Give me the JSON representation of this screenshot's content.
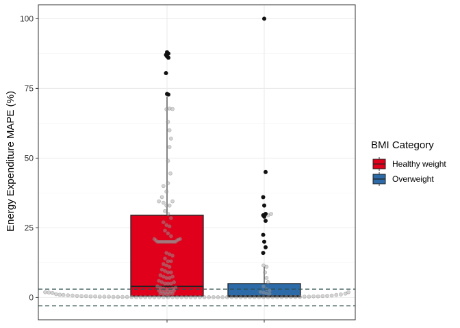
{
  "chart_data": {
    "type": "boxplot",
    "title": "",
    "xlabel": "",
    "ylabel": "Energy Expenditure MAPE (%)",
    "ylim": [
      -8,
      105
    ],
    "y_ticks": [
      0,
      25,
      50,
      75,
      100
    ],
    "y_tick_labels": [
      "0",
      "25",
      "50",
      "75",
      "100"
    ],
    "grid": true,
    "legend_position": "right",
    "legend_title": "BMI Category",
    "reference_lines": [
      3,
      -3
    ],
    "categories": [
      "Healthy weight",
      "Overweight"
    ],
    "series": [
      {
        "name": "Healthy weight",
        "color": "#e0001b",
        "q1": 0.5,
        "median": 4,
        "q3": 29.5,
        "whisker_low": 0,
        "whisker_high": 72,
        "outliers": [
          88,
          87.5,
          87,
          86.5,
          86,
          80.5,
          73,
          72.8
        ]
      },
      {
        "name": "Overweight",
        "color": "#2c6aa8",
        "q1": 0.2,
        "median": 0.5,
        "q3": 5,
        "whisker_low": 0,
        "whisker_high": 11,
        "outliers": [
          100,
          45,
          36,
          33,
          30,
          29.5,
          29,
          27.5,
          22.5,
          20,
          18,
          16
        ]
      }
    ],
    "jitter_points": [
      {
        "x": 0.0,
        "y": 1.9
      },
      {
        "x": 0.012,
        "y": 1.8
      },
      {
        "x": 0.024,
        "y": 1.6
      },
      {
        "x": 0.036,
        "y": 1.2
      },
      {
        "x": 0.048,
        "y": 1.0
      },
      {
        "x": 0.06,
        "y": 0.9
      },
      {
        "x": 0.075,
        "y": 0.8
      },
      {
        "x": 0.09,
        "y": 0.7
      },
      {
        "x": 0.105,
        "y": 0.6
      },
      {
        "x": 0.12,
        "y": 0.5
      },
      {
        "x": 0.135,
        "y": 0.5
      },
      {
        "x": 0.15,
        "y": 0.4
      },
      {
        "x": 0.165,
        "y": 0.4
      },
      {
        "x": 0.18,
        "y": 0.3
      },
      {
        "x": 0.195,
        "y": 0.3
      },
      {
        "x": 0.21,
        "y": 0.3
      },
      {
        "x": 0.225,
        "y": 0.2
      },
      {
        "x": 0.24,
        "y": 0.2
      },
      {
        "x": 0.255,
        "y": 0.2
      },
      {
        "x": 0.27,
        "y": 0.2
      },
      {
        "x": 0.285,
        "y": 0.2
      },
      {
        "x": 0.3,
        "y": 0.1
      },
      {
        "x": 0.315,
        "y": 0.1
      },
      {
        "x": 0.33,
        "y": 0.1
      },
      {
        "x": 0.345,
        "y": 0.1
      },
      {
        "x": 0.36,
        "y": 0.1
      },
      {
        "x": 0.375,
        "y": 0.1
      },
      {
        "x": 0.39,
        "y": 0.1
      },
      {
        "x": 0.405,
        "y": 0.1
      },
      {
        "x": 0.42,
        "y": 0.1
      },
      {
        "x": 0.435,
        "y": 0.1
      },
      {
        "x": 0.45,
        "y": 0.1
      },
      {
        "x": 0.465,
        "y": 0.1
      },
      {
        "x": 0.48,
        "y": 0.1
      },
      {
        "x": 0.495,
        "y": 0.1
      },
      {
        "x": 0.51,
        "y": 0.1
      },
      {
        "x": 0.525,
        "y": 0.1
      },
      {
        "x": 0.54,
        "y": 0.1
      },
      {
        "x": 0.555,
        "y": 0.1
      },
      {
        "x": 0.57,
        "y": 0.1
      },
      {
        "x": 0.585,
        "y": 0.1
      },
      {
        "x": 0.6,
        "y": 0.1
      },
      {
        "x": 0.615,
        "y": 0.1
      },
      {
        "x": 0.63,
        "y": 0.1
      },
      {
        "x": 0.645,
        "y": 0.1
      },
      {
        "x": 0.66,
        "y": 0.1
      },
      {
        "x": 0.675,
        "y": 0.1
      },
      {
        "x": 0.69,
        "y": 0.1
      },
      {
        "x": 0.705,
        "y": 0.1
      },
      {
        "x": 0.72,
        "y": 0.1
      },
      {
        "x": 0.735,
        "y": 0.1
      },
      {
        "x": 0.75,
        "y": 0.1
      },
      {
        "x": 0.765,
        "y": 0.1
      },
      {
        "x": 0.78,
        "y": 0.1
      },
      {
        "x": 0.795,
        "y": 0.2
      },
      {
        "x": 0.81,
        "y": 0.2
      },
      {
        "x": 0.825,
        "y": 0.2
      },
      {
        "x": 0.84,
        "y": 0.2
      },
      {
        "x": 0.855,
        "y": 0.3
      },
      {
        "x": 0.87,
        "y": 0.3
      },
      {
        "x": 0.885,
        "y": 0.4
      },
      {
        "x": 0.9,
        "y": 0.4
      },
      {
        "x": 0.915,
        "y": 0.5
      },
      {
        "x": 0.93,
        "y": 0.6
      },
      {
        "x": 0.945,
        "y": 0.7
      },
      {
        "x": 0.96,
        "y": 0.9
      },
      {
        "x": 0.975,
        "y": 1.1
      },
      {
        "x": 0.99,
        "y": 1.4
      },
      {
        "x": 1.0,
        "y": 1.9
      },
      {
        "x": 0.4,
        "y": 67.5
      },
      {
        "x": 0.41,
        "y": 67.8
      },
      {
        "x": 0.42,
        "y": 67.6
      },
      {
        "x": 0.405,
        "y": 63
      },
      {
        "x": 0.41,
        "y": 60
      },
      {
        "x": 0.415,
        "y": 57
      },
      {
        "x": 0.41,
        "y": 54
      },
      {
        "x": 0.405,
        "y": 49
      },
      {
        "x": 0.413,
        "y": 44.5
      },
      {
        "x": 0.405,
        "y": 41
      },
      {
        "x": 0.39,
        "y": 40
      },
      {
        "x": 0.4,
        "y": 38
      },
      {
        "x": 0.385,
        "y": 36
      },
      {
        "x": 0.375,
        "y": 34.5
      },
      {
        "x": 0.39,
        "y": 34
      },
      {
        "x": 0.4,
        "y": 33
      },
      {
        "x": 0.41,
        "y": 33
      },
      {
        "x": 0.42,
        "y": 34.5
      },
      {
        "x": 0.395,
        "y": 31
      },
      {
        "x": 0.405,
        "y": 30
      },
      {
        "x": 0.415,
        "y": 28.5
      },
      {
        "x": 0.39,
        "y": 27
      },
      {
        "x": 0.4,
        "y": 26
      },
      {
        "x": 0.41,
        "y": 25.5
      },
      {
        "x": 0.395,
        "y": 24
      },
      {
        "x": 0.405,
        "y": 23
      },
      {
        "x": 0.415,
        "y": 22
      },
      {
        "x": 0.36,
        "y": 21
      },
      {
        "x": 0.365,
        "y": 20.5
      },
      {
        "x": 0.37,
        "y": 20
      },
      {
        "x": 0.375,
        "y": 20
      },
      {
        "x": 0.38,
        "y": 20
      },
      {
        "x": 0.385,
        "y": 20
      },
      {
        "x": 0.39,
        "y": 20
      },
      {
        "x": 0.395,
        "y": 20
      },
      {
        "x": 0.4,
        "y": 20
      },
      {
        "x": 0.405,
        "y": 20
      },
      {
        "x": 0.41,
        "y": 20
      },
      {
        "x": 0.415,
        "y": 20
      },
      {
        "x": 0.42,
        "y": 20
      },
      {
        "x": 0.425,
        "y": 20
      },
      {
        "x": 0.43,
        "y": 20
      },
      {
        "x": 0.435,
        "y": 20.5
      },
      {
        "x": 0.44,
        "y": 20.8
      },
      {
        "x": 0.445,
        "y": 21
      },
      {
        "x": 0.4,
        "y": 16
      },
      {
        "x": 0.41,
        "y": 15.5
      },
      {
        "x": 0.42,
        "y": 15
      },
      {
        "x": 0.395,
        "y": 14
      },
      {
        "x": 0.405,
        "y": 13
      },
      {
        "x": 0.415,
        "y": 13
      },
      {
        "x": 0.39,
        "y": 12
      },
      {
        "x": 0.4,
        "y": 11.5
      },
      {
        "x": 0.41,
        "y": 11
      },
      {
        "x": 0.385,
        "y": 10
      },
      {
        "x": 0.395,
        "y": 9.5
      },
      {
        "x": 0.405,
        "y": 9
      },
      {
        "x": 0.415,
        "y": 9
      },
      {
        "x": 0.38,
        "y": 8
      },
      {
        "x": 0.39,
        "y": 7.5
      },
      {
        "x": 0.4,
        "y": 7
      },
      {
        "x": 0.41,
        "y": 7
      },
      {
        "x": 0.42,
        "y": 7.5
      },
      {
        "x": 0.375,
        "y": 6
      },
      {
        "x": 0.385,
        "y": 5.5
      },
      {
        "x": 0.395,
        "y": 5
      },
      {
        "x": 0.405,
        "y": 5
      },
      {
        "x": 0.415,
        "y": 5
      },
      {
        "x": 0.425,
        "y": 5.5
      },
      {
        "x": 0.37,
        "y": 4
      },
      {
        "x": 0.38,
        "y": 3.5
      },
      {
        "x": 0.39,
        "y": 3.2
      },
      {
        "x": 0.4,
        "y": 3
      },
      {
        "x": 0.41,
        "y": 3
      },
      {
        "x": 0.42,
        "y": 3.2
      },
      {
        "x": 0.43,
        "y": 3.5
      },
      {
        "x": 0.375,
        "y": 2.5
      },
      {
        "x": 0.385,
        "y": 2.2
      },
      {
        "x": 0.395,
        "y": 2
      },
      {
        "x": 0.405,
        "y": 2
      },
      {
        "x": 0.415,
        "y": 2.2
      },
      {
        "x": 0.425,
        "y": 2.5
      },
      {
        "x": 0.38,
        "y": 1.5
      },
      {
        "x": 0.39,
        "y": 1.3
      },
      {
        "x": 0.4,
        "y": 1.2
      },
      {
        "x": 0.41,
        "y": 1.3
      },
      {
        "x": 0.42,
        "y": 1.5
      },
      {
        "x": 0.72,
        "y": 11.5
      },
      {
        "x": 0.73,
        "y": 11
      },
      {
        "x": 0.725,
        "y": 9
      },
      {
        "x": 0.73,
        "y": 7
      },
      {
        "x": 0.735,
        "y": 5.5
      },
      {
        "x": 0.72,
        "y": 4
      },
      {
        "x": 0.73,
        "y": 3
      },
      {
        "x": 0.74,
        "y": 2.5
      },
      {
        "x": 0.71,
        "y": 2
      },
      {
        "x": 0.72,
        "y": 1.8
      },
      {
        "x": 0.73,
        "y": 1.5
      },
      {
        "x": 0.74,
        "y": 1.3
      },
      {
        "x": 0.745,
        "y": 30
      },
      {
        "x": 0.735,
        "y": 29.5
      }
    ]
  }
}
